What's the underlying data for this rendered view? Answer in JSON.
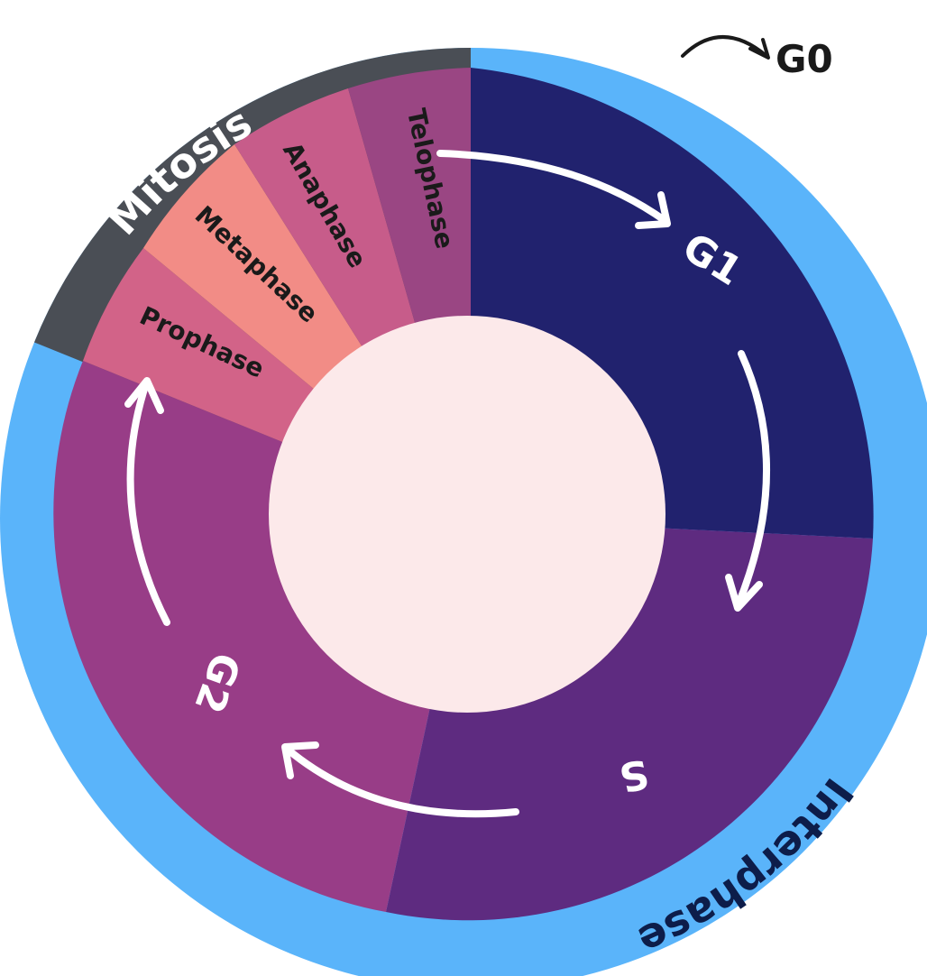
{
  "outer_labels": {
    "mitosis": "Mitosis",
    "interphase": "Interphase",
    "g0": "G0"
  },
  "phases": {
    "g1": "G1",
    "s": "S",
    "g2": "G2"
  },
  "mitosis_stages": {
    "telophase": "Telophase",
    "anaphase": "Anaphase",
    "metaphase": "Metaphase",
    "prophase": "Prophase"
  },
  "colors": {
    "interphase_ring": "#5ab4fa",
    "mitosis_ring": "#4a4e55",
    "g1": "#21226e",
    "s": "#5e2b80",
    "g2": "#983d87",
    "telophase": "#9a4683",
    "anaphase": "#c75c8a",
    "metaphase": "#f28c86",
    "prophase": "#d26388",
    "center": "#fce9ea",
    "arrows": "#ffffff",
    "dark_text": "#1a1a1a",
    "light_text": "#ffffff"
  }
}
